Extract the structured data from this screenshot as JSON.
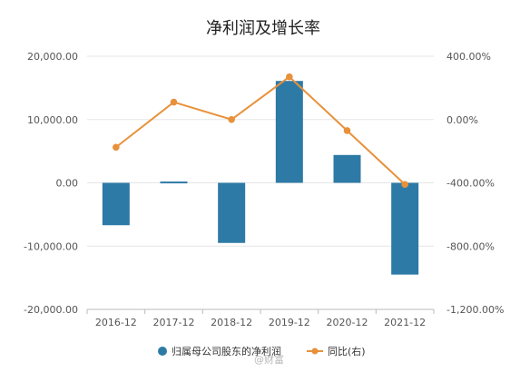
{
  "chart_data": {
    "type": "bar+line",
    "title": "净利润及增长率",
    "categories": [
      "2016-12",
      "2017-12",
      "2018-12",
      "2019-12",
      "2020-12",
      "2021-12"
    ],
    "series": [
      {
        "name": "归属母公司股东的净利润",
        "type": "bar",
        "axis": "left",
        "color": "#2e7aa6",
        "values": [
          -6700,
          200,
          -9500,
          16100,
          4400,
          -14500
        ]
      },
      {
        "name": "同比(右)",
        "type": "line",
        "axis": "right",
        "color": "#e8913a",
        "values": [
          -175,
          110,
          0,
          270,
          -70,
          -410
        ]
      }
    ],
    "left_axis": {
      "ylim": [
        -20000,
        20000
      ],
      "ticks": [
        20000,
        10000,
        0,
        -10000,
        -20000
      ],
      "tick_labels": [
        "20,000.00",
        "10,000.00",
        "0.00",
        "-10,000.00",
        "-20,000.00"
      ]
    },
    "right_axis": {
      "ylim": [
        -1200,
        400
      ],
      "ticks": [
        400,
        0,
        -400,
        -800,
        -1200
      ],
      "tick_labels": [
        "400.00%",
        "0.00%",
        "-400.00%",
        "-800.00%",
        "-1,200.00%"
      ]
    },
    "grid": true,
    "legend_position": "bottom"
  },
  "watermark": "@财富",
  "colors": {
    "bar": "#2e7aa6",
    "line": "#e8913a",
    "grid": "#e6e6e6",
    "axis": "#bbbbbb"
  }
}
